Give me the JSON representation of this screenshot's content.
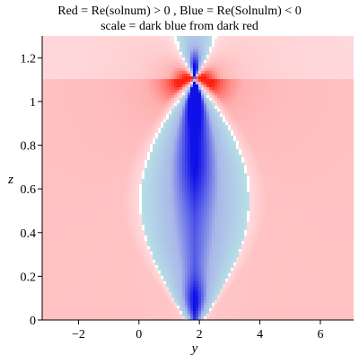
{
  "chart_data": {
    "type": "heatmap",
    "title": "Red = Re(solnum) > 0 , Blue = Re(Solnulm) < 0",
    "subtitle": "scale = dark blue from dark red",
    "xlabel": "y",
    "ylabel": "z",
    "xlim": [
      -3.2,
      7.1
    ],
    "ylim": [
      0,
      1.3
    ],
    "x_ticks": [
      {
        "value": -2,
        "label": "−2"
      },
      {
        "value": 0,
        "label": "0"
      },
      {
        "value": 2,
        "label": "2"
      },
      {
        "value": 4,
        "label": "4"
      },
      {
        "value": 6,
        "label": "6"
      }
    ],
    "y_ticks": [
      {
        "value": 0,
        "label": "0"
      },
      {
        "value": 0.2,
        "label": "0.2"
      },
      {
        "value": 0.4,
        "label": "0.4"
      },
      {
        "value": 0.6,
        "label": "0.6"
      },
      {
        "value": 0.8,
        "label": "0.8"
      },
      {
        "value": 1,
        "label": "1"
      },
      {
        "value": 1.2,
        "label": "1.2"
      }
    ],
    "singularity": {
      "y": 1.85,
      "z": 1.1
    },
    "color_scale": {
      "positive_colors": [
        "#ffe4e8",
        "#ffb0b0",
        "#ff2010"
      ],
      "negative_colors": [
        "#b8e2e6",
        "#a9b7e8",
        "#1010e8"
      ]
    },
    "grid": false
  }
}
